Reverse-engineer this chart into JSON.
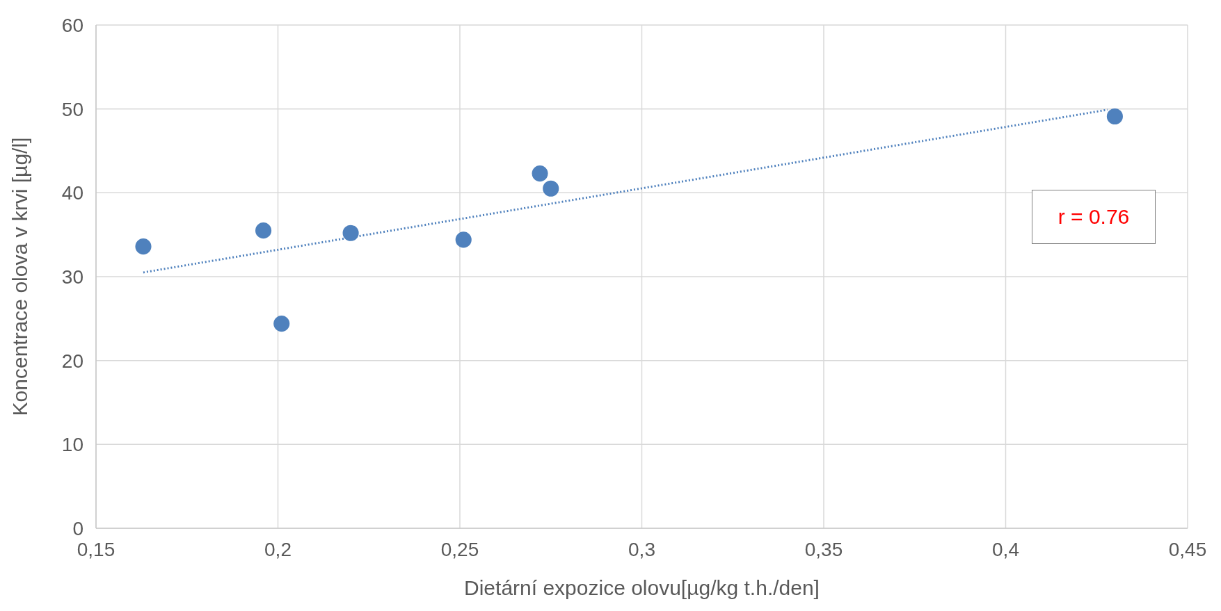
{
  "chart_data": {
    "type": "scatter",
    "xlabel": "Dietární expozice olovu[µg/kg t.h./den]",
    "ylabel": "Koncentrace olova v krvi [µg/l]",
    "series": [
      {
        "color": "#4f81bd",
        "x": [
          0.163,
          0.196,
          0.201,
          0.22,
          0.251,
          0.272,
          0.275,
          0.43
        ],
        "values": [
          33.6,
          35.5,
          24.4,
          35.2,
          34.4,
          42.3,
          40.5,
          49.1
        ],
        "marker": "circle"
      },
      {
        "type": "line",
        "color": "#4f81bd",
        "x": [
          0.163,
          0.428
        ],
        "values": [
          30.5,
          49.9
        ],
        "line_style": "dotted",
        "marker": "none"
      }
    ],
    "xlim": [
      0.15,
      0.45
    ],
    "xticks": [
      {
        "value": 0.15,
        "label": "0,15"
      },
      {
        "value": 0.2,
        "label": "0,2"
      },
      {
        "value": 0.25,
        "label": "0,25"
      },
      {
        "value": 0.3,
        "label": "0,3"
      },
      {
        "value": 0.35,
        "label": "0,35"
      },
      {
        "value": 0.4,
        "label": "0,4"
      },
      {
        "value": 0.45,
        "label": "0,45"
      }
    ],
    "ylim": [
      0,
      60
    ],
    "yticks": [
      0,
      10,
      20,
      30,
      40,
      50,
      60
    ],
    "grid": true,
    "annotations": [
      "r = 0.76"
    ]
  }
}
